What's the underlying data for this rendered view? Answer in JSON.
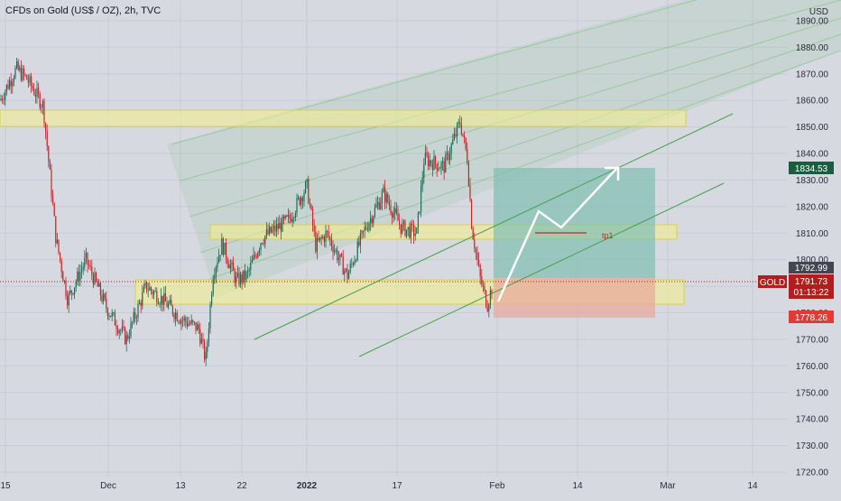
{
  "header": {
    "title": "CFDs on Gold (US$ / OZ), 2h, TVC"
  },
  "axis": {
    "unit": "USD",
    "y_ticks": [
      "1890.00",
      "1880.00",
      "1870.00",
      "1860.00",
      "1850.00",
      "1840.00",
      "1830.00",
      "1820.00",
      "1810.00",
      "1800.00",
      "1790.00",
      "1780.00",
      "1770.00",
      "1760.00",
      "1750.00",
      "1740.00",
      "1730.00",
      "1720.00"
    ],
    "x_ticks": [
      "15",
      "Dec",
      "13",
      "22",
      "2022",
      "10",
      "17",
      "Feb",
      "14",
      "Mar",
      "14"
    ]
  },
  "price_labels": {
    "target": "1834.53",
    "entry": "1792.99",
    "symbol": "GOLD",
    "current": "1791.73",
    "countdown": "01:13:22",
    "stop": "1778.26"
  },
  "annotation": {
    "tp1": "tp1"
  },
  "colors": {
    "background": "#d6d9e0",
    "up_candle": "#1f6b55",
    "down_candle": "#c2262e",
    "zone": "#f5f08a",
    "channel": "#4caf50",
    "target_box": "#7fbfb2",
    "stop_box": "#e8a89a",
    "green_label": "#1b5e3f",
    "red_label": "#e53935",
    "current_label": "#b71c1c"
  },
  "chart_data": {
    "type": "candlestick",
    "symbol": "GOLD",
    "timeframe": "2h",
    "ylim": [
      1718,
      1893
    ],
    "y_unit": "USD",
    "price_anchors": [
      {
        "x": 0,
        "y": 1860
      },
      {
        "x": 18,
        "y": 1872
      },
      {
        "x": 30,
        "y": 1868
      },
      {
        "x": 48,
        "y": 1858
      },
      {
        "x": 62,
        "y": 1808
      },
      {
        "x": 75,
        "y": 1785
      },
      {
        "x": 95,
        "y": 1800
      },
      {
        "x": 118,
        "y": 1782
      },
      {
        "x": 140,
        "y": 1770
      },
      {
        "x": 162,
        "y": 1790
      },
      {
        "x": 180,
        "y": 1785
      },
      {
        "x": 200,
        "y": 1778
      },
      {
        "x": 220,
        "y": 1774
      },
      {
        "x": 228,
        "y": 1762
      },
      {
        "x": 236,
        "y": 1795
      },
      {
        "x": 246,
        "y": 1806
      },
      {
        "x": 262,
        "y": 1792
      },
      {
        "x": 274,
        "y": 1794
      },
      {
        "x": 290,
        "y": 1808
      },
      {
        "x": 320,
        "y": 1815
      },
      {
        "x": 340,
        "y": 1828
      },
      {
        "x": 350,
        "y": 1805
      },
      {
        "x": 362,
        "y": 1810
      },
      {
        "x": 385,
        "y": 1794
      },
      {
        "x": 405,
        "y": 1812
      },
      {
        "x": 425,
        "y": 1825
      },
      {
        "x": 445,
        "y": 1812
      },
      {
        "x": 462,
        "y": 1810
      },
      {
        "x": 470,
        "y": 1838
      },
      {
        "x": 492,
        "y": 1835
      },
      {
        "x": 510,
        "y": 1852
      },
      {
        "x": 518,
        "y": 1838
      },
      {
        "x": 523,
        "y": 1812
      },
      {
        "x": 532,
        "y": 1793
      },
      {
        "x": 540,
        "y": 1783
      },
      {
        "x": 546,
        "y": 1791
      }
    ],
    "zones": [
      {
        "from": 1850,
        "to": 1856
      },
      {
        "from": 1808,
        "to": 1813
      },
      {
        "from": 1783,
        "to": 1792
      }
    ],
    "trade": {
      "entry": 1792.99,
      "target": 1834.53,
      "stop": 1778.26,
      "tp1": 1810
    },
    "current_price": 1791.73
  }
}
